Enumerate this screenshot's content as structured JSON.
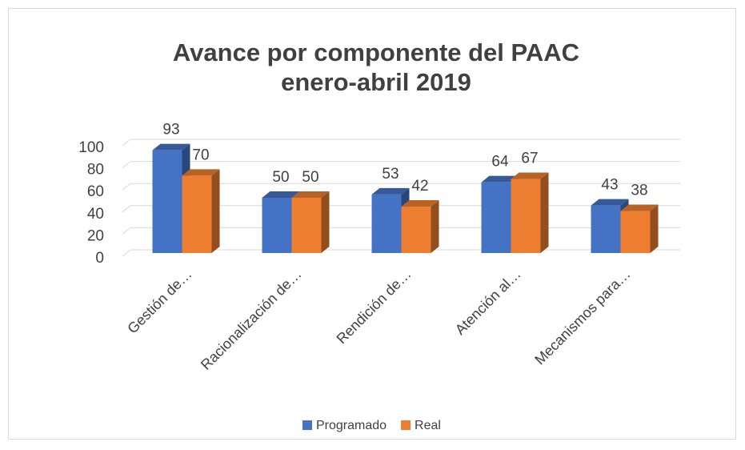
{
  "chart_data": {
    "type": "bar3d",
    "title": "Avance por componente del PAAC",
    "subtitle": "enero-abril 2019",
    "categories": [
      "Gestión de…",
      "Racionalización de…",
      "Rendición de…",
      "Atención al…",
      "Mecanismos para…"
    ],
    "series": [
      {
        "name": "Programado",
        "color": "#4472c4",
        "values": [
          93,
          50,
          53,
          64,
          43
        ]
      },
      {
        "name": "Real",
        "color": "#ed7d31",
        "values": [
          70,
          50,
          42,
          67,
          38
        ]
      }
    ],
    "ylim": [
      0,
      100
    ],
    "yticks": [
      0,
      20,
      40,
      60,
      80,
      100
    ],
    "grid": true,
    "legend": "bottom"
  }
}
